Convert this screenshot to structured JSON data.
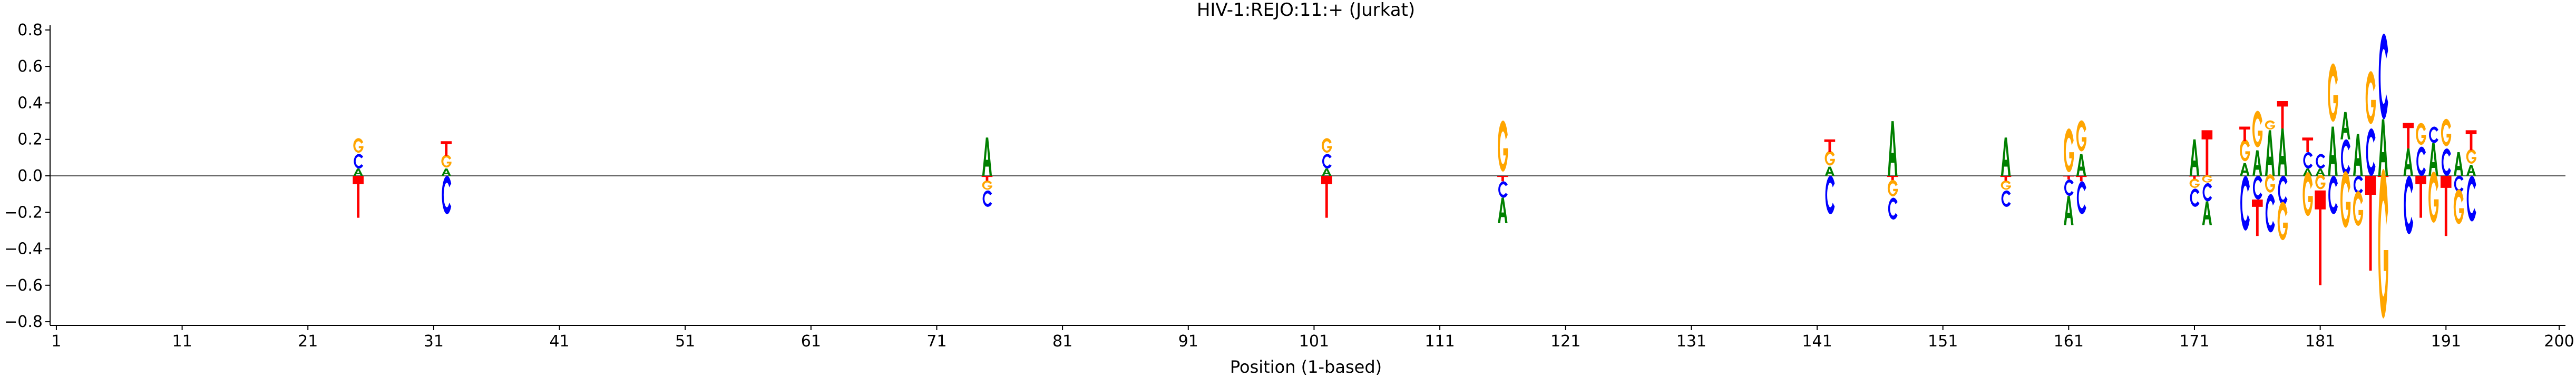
{
  "chart_data": {
    "type": "sequence-logo",
    "title": "HIV-1:REJO:11:+  (Jurkat)",
    "xlabel": "Position (1-based)",
    "ylabel": "",
    "xlim": [
      0.5,
      200.5
    ],
    "ylim": [
      -0.82,
      0.82
    ],
    "xticks": [
      1,
      11,
      21,
      31,
      41,
      51,
      61,
      71,
      81,
      91,
      101,
      111,
      121,
      131,
      141,
      151,
      161,
      171,
      181,
      191,
      200
    ],
    "yticks": [
      -0.8,
      -0.6,
      -0.4,
      -0.2,
      0.0,
      0.2,
      0.4,
      0.6,
      0.8
    ],
    "ytick_labels": [
      "−0.8",
      "−0.6",
      "−0.4",
      "−0.2",
      "0.0",
      "0.2",
      "0.4",
      "0.6",
      "0.8"
    ],
    "colors": {
      "A": "#008000",
      "C": "#0000ff",
      "G": "#ffa500",
      "T": "#ff0000"
    },
    "positions": [
      {
        "x": 25,
        "pos": [
          [
            "A",
            0.04
          ],
          [
            "C",
            0.08
          ],
          [
            "G",
            0.08
          ]
        ],
        "neg": [
          [
            "T",
            0.23
          ]
        ]
      },
      {
        "x": 32,
        "pos": [
          [
            "A",
            0.04
          ],
          [
            "G",
            0.07
          ],
          [
            "T",
            0.08
          ]
        ],
        "neg": [
          [
            "C",
            0.21
          ]
        ]
      },
      {
        "x": 75,
        "pos": [
          [
            "A",
            0.21
          ]
        ],
        "neg": [
          [
            "T",
            0.03
          ],
          [
            "G",
            0.05
          ],
          [
            "C",
            0.09
          ]
        ]
      },
      {
        "x": 102,
        "pos": [
          [
            "A",
            0.04
          ],
          [
            "C",
            0.08
          ],
          [
            "G",
            0.08
          ]
        ],
        "neg": [
          [
            "T",
            0.23
          ]
        ]
      },
      {
        "x": 116,
        "pos": [
          [
            "G",
            0.28
          ]
        ],
        "neg": [
          [
            "T",
            0.03
          ],
          [
            "C",
            0.09
          ],
          [
            "A",
            0.14
          ]
        ]
      },
      {
        "x": 142,
        "pos": [
          [
            "A",
            0.05
          ],
          [
            "G",
            0.08
          ],
          [
            "T",
            0.07
          ]
        ],
        "neg": [
          [
            "C",
            0.21
          ]
        ]
      },
      {
        "x": 147,
        "pos": [
          [
            "A",
            0.3
          ]
        ],
        "neg": [
          [
            "T",
            0.03
          ],
          [
            "G",
            0.09
          ],
          [
            "C",
            0.12
          ]
        ]
      },
      {
        "x": 156,
        "pos": [
          [
            "A",
            0.21
          ]
        ],
        "neg": [
          [
            "T",
            0.03
          ],
          [
            "G",
            0.05
          ],
          [
            "C",
            0.09
          ]
        ]
      },
      {
        "x": 161,
        "pos": [
          [
            "G",
            0.24
          ]
        ],
        "neg": [
          [
            "T",
            0.02
          ],
          [
            "C",
            0.09
          ],
          [
            "A",
            0.16
          ]
        ]
      },
      {
        "x": 162,
        "pos": [
          [
            "A",
            0.12
          ],
          [
            "G",
            0.17
          ]
        ],
        "neg": [
          [
            "T",
            0.03
          ],
          [
            "C",
            0.18
          ]
        ]
      },
      {
        "x": 171,
        "pos": [
          [
            "A",
            0.2
          ]
        ],
        "neg": [
          [
            "T",
            0.02
          ],
          [
            "G",
            0.05
          ],
          [
            "C",
            0.1
          ]
        ]
      },
      {
        "x": 172,
        "pos": [
          [
            "T",
            0.25
          ]
        ],
        "neg": [
          [
            "G",
            0.04
          ],
          [
            "C",
            0.1
          ],
          [
            "A",
            0.13
          ]
        ]
      },
      {
        "x": 175,
        "pos": [
          [
            "A",
            0.07
          ],
          [
            "G",
            0.12
          ],
          [
            "T",
            0.08
          ]
        ],
        "neg": [
          [
            "C",
            0.3
          ]
        ]
      },
      {
        "x": 176,
        "pos": [
          [
            "A",
            0.14
          ],
          [
            "G",
            0.2
          ]
        ],
        "neg": [
          [
            "C",
            0.13
          ],
          [
            "T",
            0.2
          ]
        ]
      },
      {
        "x": 177,
        "pos": [
          [
            "A",
            0.25
          ],
          [
            "G",
            0.05
          ]
        ],
        "neg": [
          [
            "G",
            0.1
          ],
          [
            "C",
            0.21
          ]
        ]
      },
      {
        "x": 178,
        "pos": [
          [
            "A",
            0.26
          ],
          [
            "T",
            0.15
          ]
        ],
        "neg": [
          [
            "C",
            0.16
          ],
          [
            "G",
            0.21
          ]
        ]
      },
      {
        "x": 180,
        "pos": [
          [
            "A",
            0.04
          ],
          [
            "C",
            0.09
          ],
          [
            "T",
            0.08
          ]
        ],
        "neg": [
          [
            "G",
            0.24
          ]
        ]
      },
      {
        "x": 181,
        "pos": [
          [
            "A",
            0.04
          ],
          [
            "C",
            0.08
          ]
        ],
        "neg": [
          [
            "G",
            0.08
          ],
          [
            "T",
            0.52
          ]
        ]
      },
      {
        "x": 182,
        "pos": [
          [
            "A",
            0.27
          ],
          [
            "G",
            0.32
          ]
        ],
        "neg": [
          [
            "C",
            0.21
          ]
        ]
      },
      {
        "x": 183,
        "pos": [
          [
            "C",
            0.2
          ],
          [
            "A",
            0.15
          ]
        ],
        "neg": [
          [
            "G",
            0.31
          ]
        ]
      },
      {
        "x": 184,
        "pos": [
          [
            "A",
            0.23
          ]
        ],
        "neg": [
          [
            "C",
            0.1
          ],
          [
            "G",
            0.19
          ]
        ]
      },
      {
        "x": 185,
        "pos": [
          [
            "C",
            0.26
          ],
          [
            "G",
            0.29
          ]
        ],
        "neg": [
          [
            "T",
            0.52
          ]
        ]
      },
      {
        "x": 186,
        "pos": [
          [
            "A",
            0.31
          ],
          [
            "C",
            0.47
          ]
        ],
        "neg": [
          [
            "T",
            0.03
          ],
          [
            "G",
            0.82
          ]
        ]
      },
      {
        "x": 188,
        "pos": [
          [
            "A",
            0.15
          ],
          [
            "T",
            0.14
          ]
        ],
        "neg": [
          [
            "C",
            0.32
          ]
        ]
      },
      {
        "x": 189,
        "pos": [
          [
            "C",
            0.16
          ],
          [
            "G",
            0.12
          ]
        ],
        "neg": [
          [
            "T",
            0.23
          ]
        ]
      },
      {
        "x": 190,
        "pos": [
          [
            "A",
            0.18
          ],
          [
            "C",
            0.09
          ]
        ],
        "neg": [
          [
            "G",
            0.28
          ]
        ]
      },
      {
        "x": 191,
        "pos": [
          [
            "C",
            0.15
          ],
          [
            "G",
            0.15
          ]
        ],
        "neg": [
          [
            "T",
            0.33
          ]
        ]
      },
      {
        "x": 192,
        "pos": [
          [
            "A",
            0.13
          ]
        ],
        "neg": [
          [
            "C",
            0.09
          ],
          [
            "G",
            0.19
          ]
        ]
      },
      {
        "x": 193,
        "pos": [
          [
            "A",
            0.06
          ],
          [
            "G",
            0.08
          ],
          [
            "T",
            0.11
          ]
        ],
        "neg": [
          [
            "C",
            0.25
          ]
        ]
      }
    ]
  }
}
